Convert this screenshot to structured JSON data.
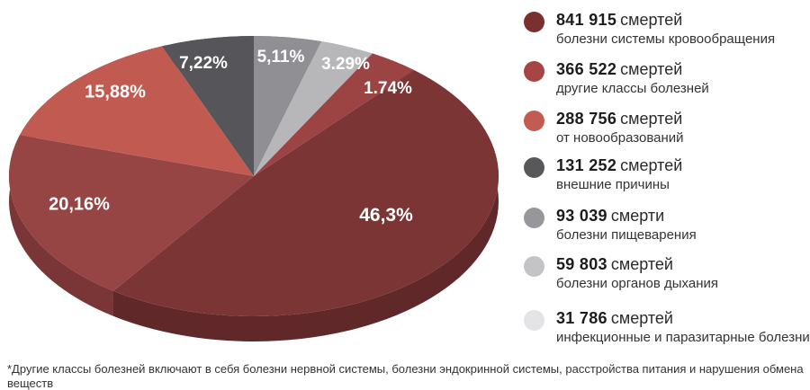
{
  "chart_data": {
    "type": "pie",
    "title": "",
    "legend_position": "right",
    "footnote": "*Другие классы болезней включают в себя болезни нервной системы, болезни эндокринной системы, расстройства питания и нарушения обмена веществ",
    "slices": [
      {
        "value": 841915,
        "value_text": "841 915",
        "unit": "смертей",
        "label": "болезни системы кровообращения",
        "pct": 46.3,
        "pct_label": "46,3%",
        "legend_color": "#7B3030",
        "pie_color": "#7B3535",
        "side_color": "#602828"
      },
      {
        "value": 366522,
        "value_text": "366 522",
        "unit": "смертей",
        "label": "другие классы болезней",
        "pct": 20.16,
        "pct_label": "20,16%",
        "legend_color": "#A74444",
        "pie_color": "#964444",
        "side_color": "#7A3636"
      },
      {
        "value": 288756,
        "value_text": "288 756",
        "unit": "смертей",
        "label": "от новообразований",
        "pct": 15.88,
        "pct_label": "15,88%",
        "legend_color": "#C25B52",
        "pie_color": "#C15A51",
        "side_color": "#A44840"
      },
      {
        "value": 131252,
        "value_text": "131 252",
        "unit": "смертей",
        "label": "внешние причины",
        "pct": 7.22,
        "pct_label": "7,22%",
        "legend_color": "#58585A",
        "pie_color": "#56565A",
        "side_color": "#3F3F42"
      },
      {
        "value": 93039,
        "value_text": "93 039",
        "unit": "смерти",
        "label": "болезни пищеварения",
        "pct": 5.11,
        "pct_label": "5,11%",
        "legend_color": "#97979B",
        "pie_color": "#909094",
        "side_color": "#77777B"
      },
      {
        "value": 59803,
        "value_text": "59 803",
        "unit": "смертей",
        "label": "болезни органов дыхания",
        "pct": 3.29,
        "pct_label": "3.29%",
        "legend_color": "#C4C4C6",
        "pie_color": "#B7B7BA",
        "side_color": "#9E9EA1"
      },
      {
        "value": 31786,
        "value_text": "31 786",
        "unit": "смертей",
        "label": "инфекционные и паразитарные болезни",
        "pct": 1.74,
        "pct_label": "1.74%",
        "legend_color": "#E4E4E7",
        "pie_color": "#9C4343",
        "side_color": "#7E3434"
      }
    ]
  }
}
